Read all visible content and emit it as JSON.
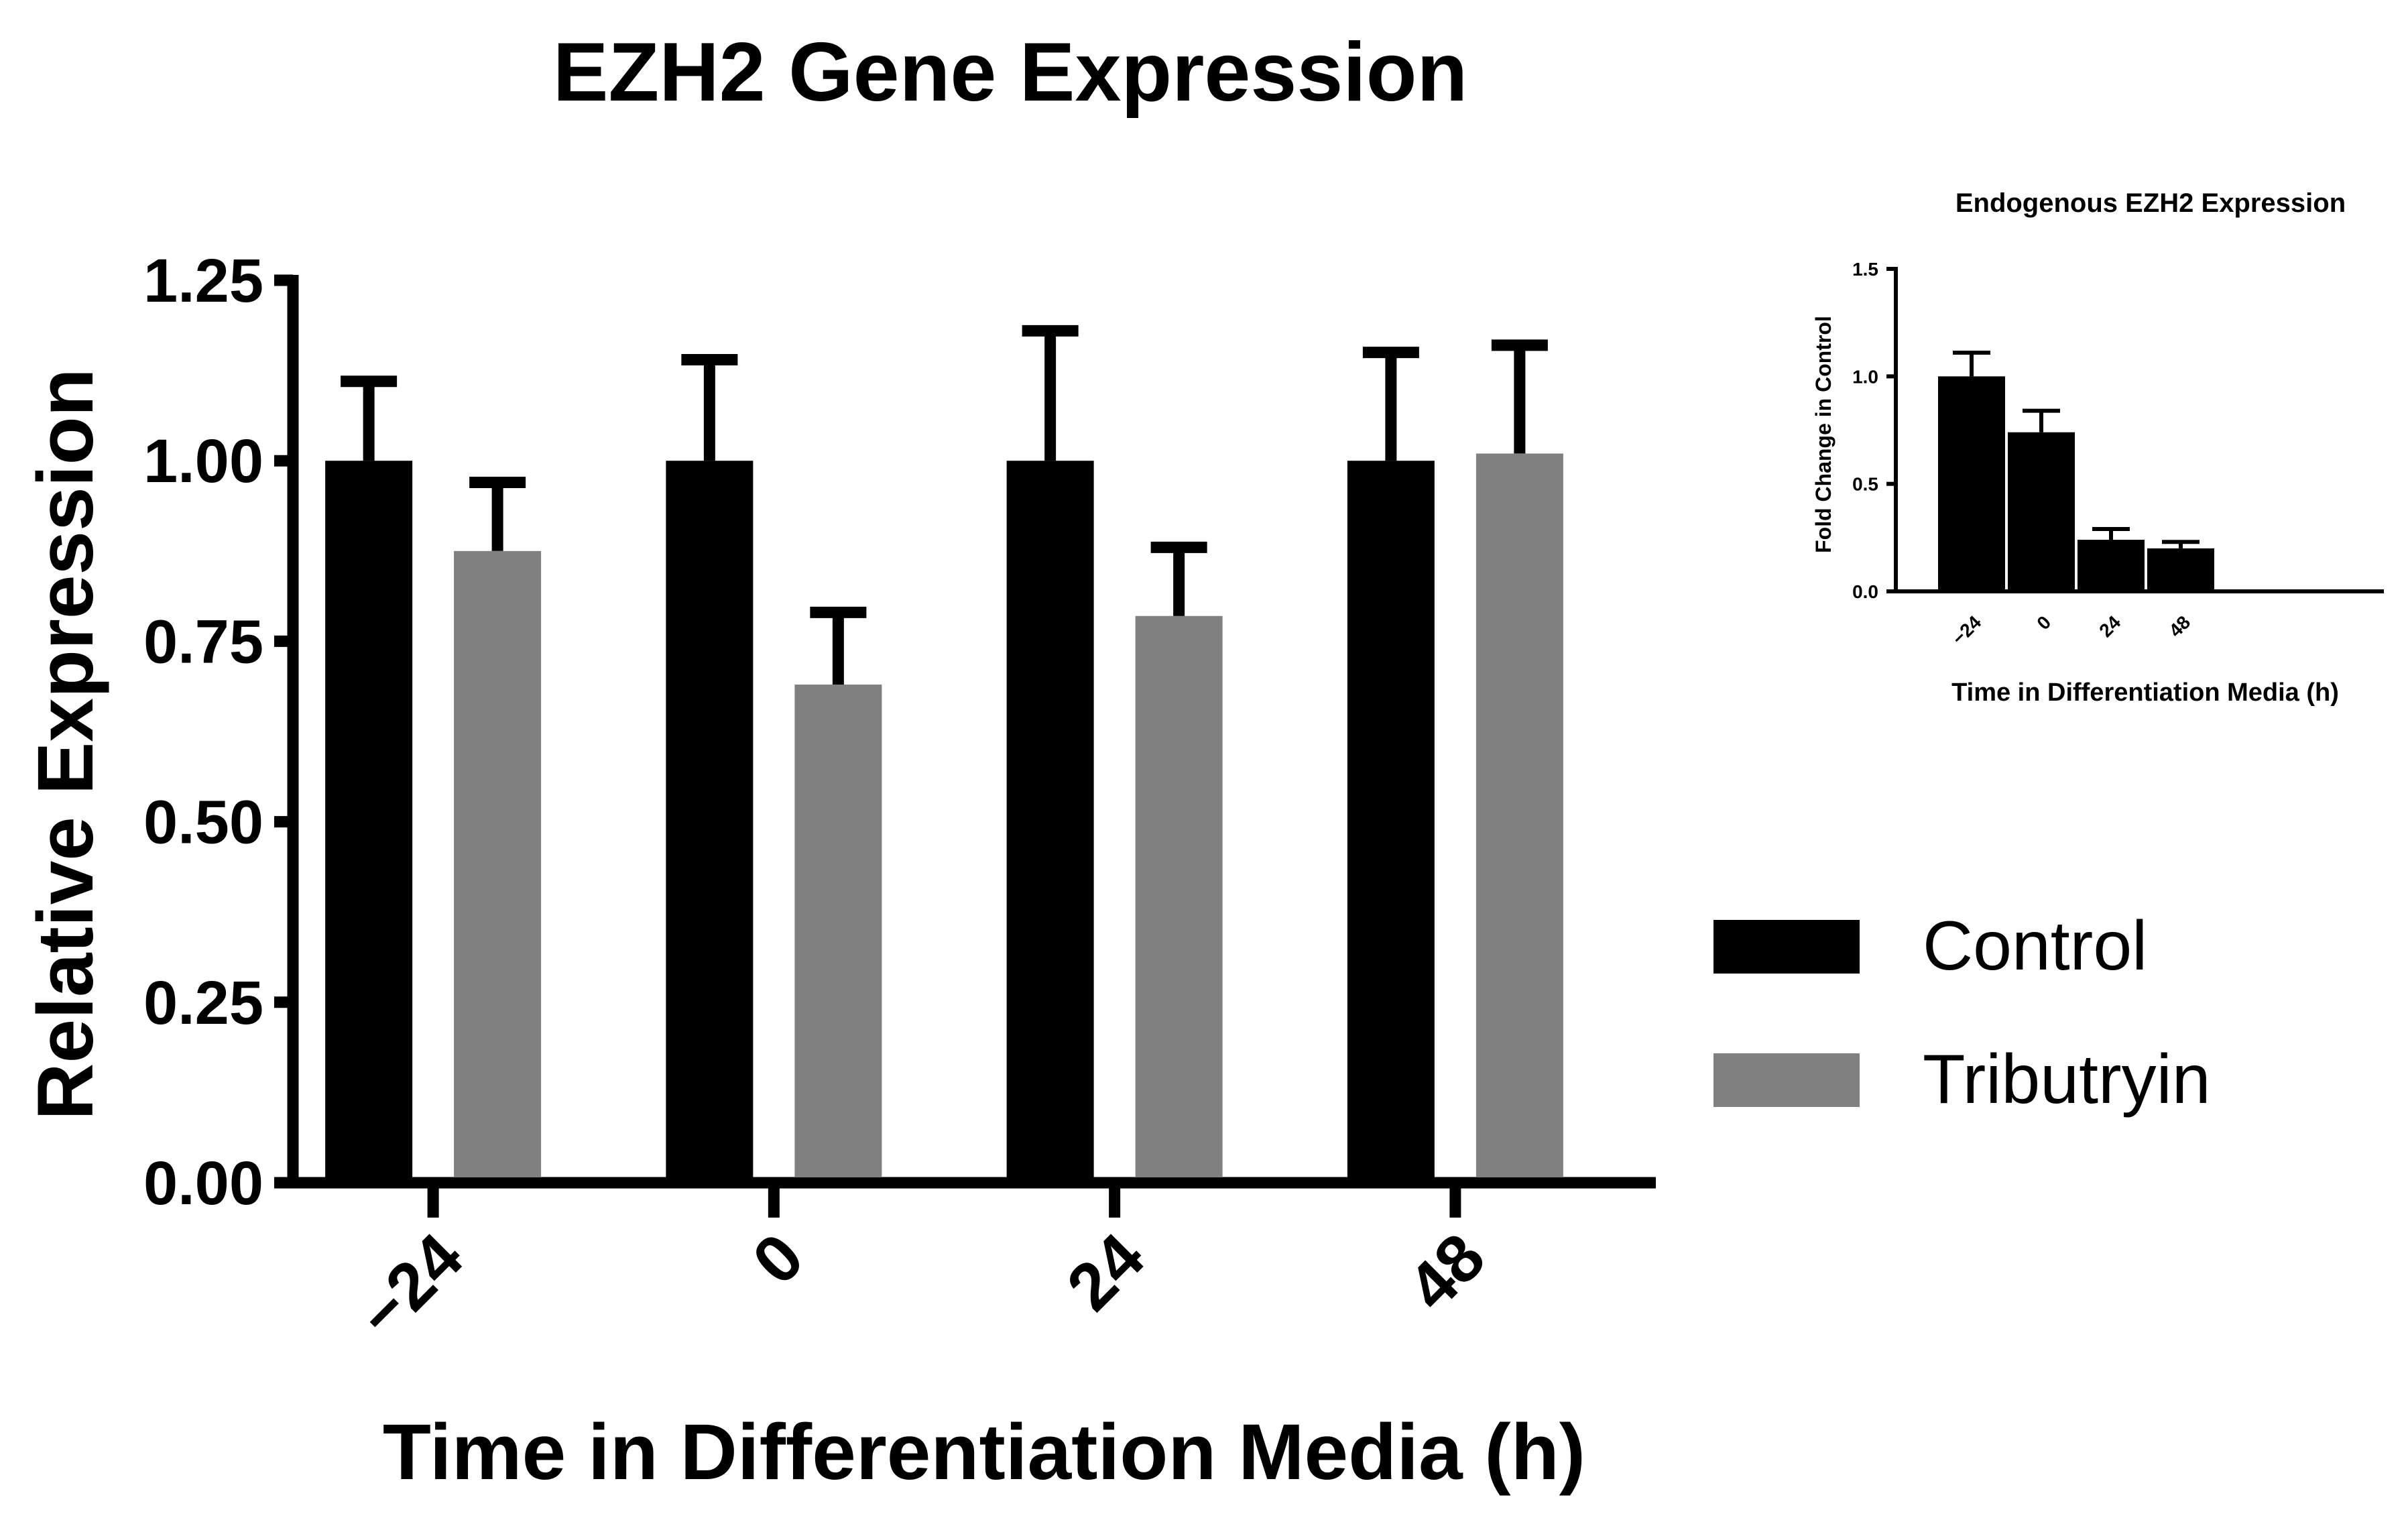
{
  "chart_data": [
    {
      "type": "bar",
      "title": "EZH2 Gene Expression",
      "xlabel": "Time in Differentiation Media (h)",
      "ylabel": "Relative Expression",
      "categories": [
        "−24",
        "0",
        "24",
        "48"
      ],
      "ylim": [
        0,
        1.25
      ],
      "yticks": [
        "0.00",
        "0.25",
        "0.50",
        "0.75",
        "1.00",
        "1.25"
      ],
      "grid": false,
      "legend_position": "right",
      "series": [
        {
          "name": "Control",
          "color": "#000000",
          "values": [
            1.0,
            1.0,
            1.0,
            1.0
          ],
          "error": [
            0.11,
            0.14,
            0.18,
            0.15
          ]
        },
        {
          "name": "Tributryin",
          "color": "#808080",
          "values": [
            0.875,
            0.69,
            0.785,
            1.01
          ],
          "error": [
            0.095,
            0.1,
            0.095,
            0.15
          ]
        }
      ]
    },
    {
      "type": "bar",
      "title": "Endogenous EZH2 Expression",
      "xlabel": "Time in Differentiation Media (h)",
      "ylabel": "Fold Change in Control",
      "categories": [
        "−24",
        "0",
        "24",
        "48"
      ],
      "ylim": [
        0,
        1.5
      ],
      "yticks": [
        "0.0",
        "0.5",
        "1.0",
        "1.5"
      ],
      "grid": false,
      "series": [
        {
          "color": "#000000",
          "values": [
            1.0,
            0.74,
            0.24,
            0.2
          ],
          "error": [
            0.11,
            0.1,
            0.05,
            0.03
          ]
        }
      ]
    }
  ]
}
